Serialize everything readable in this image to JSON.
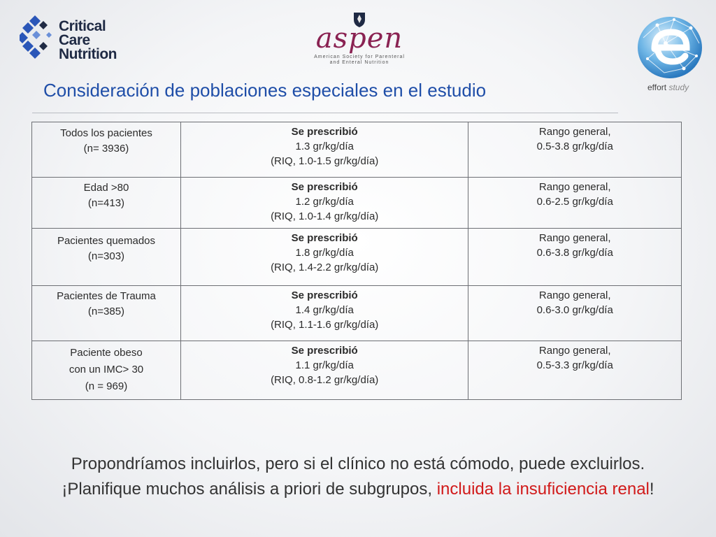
{
  "logos": {
    "ccn_line1": "Critical Care",
    "ccn_line2": "Nutrition",
    "aspen_word": "aspen",
    "aspen_sub1": "American Society for Parenteral",
    "aspen_sub2": "and Enteral Nutrition",
    "effort_name": "effort",
    "effort_suffix": " study"
  },
  "title": "Consideración de poblaciones especiales en el estudio",
  "rows": [
    {
      "population": [
        "Todos los pacientes",
        "(n= 3936)"
      ],
      "prescribed_head": "Se prescribió",
      "prescribed": [
        "1.3 gr/kg/día",
        "(RIQ, 1.0-1.5 gr/kg/día)"
      ],
      "range": [
        "Rango general,",
        "0.5-3.8 gr/kg/día"
      ]
    },
    {
      "population": [
        "Edad >80",
        "(n=413)"
      ],
      "prescribed_head": "Se prescribió",
      "prescribed": [
        "1.2 gr/kg/día",
        "(RIQ, 1.0-1.4 gr/kg/día)"
      ],
      "range": [
        "Rango general,",
        "0.6-2.5 gr/kg/día"
      ]
    },
    {
      "population": [
        "Pacientes quemados",
        "(n=303)"
      ],
      "prescribed_head": "Se prescribió",
      "prescribed": [
        "1.8 gr/kg/día",
        "(RIQ, 1.4-2.2 gr/kg/día)"
      ],
      "range": [
        "Rango general,",
        "0.6-3.8 gr/kg/día"
      ]
    },
    {
      "population": [
        "Pacientes de Trauma",
        "(n=385)"
      ],
      "prescribed_head": "Se prescribió",
      "prescribed": [
        "1.4 gr/kg/día",
        "(RIQ, 1.1-1.6 gr/kg/día)"
      ],
      "range": [
        "Rango general,",
        "0.6-3.0 gr/kg/día"
      ]
    },
    {
      "population": [
        "Paciente obeso",
        "con un IMC> 30",
        "(n = 969)"
      ],
      "prescribed_head": "Se prescribió",
      "prescribed": [
        "1.1 gr/kg/día",
        "(RIQ, 0.8-1.2 gr/kg/día)"
      ],
      "range": [
        "Rango general,",
        "0.5-3.3 gr/kg/día"
      ]
    }
  ],
  "footer": {
    "line1": "Propondríamos incluirlos, pero si el clínico no está cómodo, puede excluirlos.",
    "line2_start": "¡Planifique muchos análisis a priori de subgrupos, ",
    "line2_red": "incluida la insuficiencia renal",
    "line2_end": "!"
  },
  "colors": {
    "title": "#1f4ea8",
    "highlight": "#d11a1a",
    "aspen": "#8a2252"
  }
}
